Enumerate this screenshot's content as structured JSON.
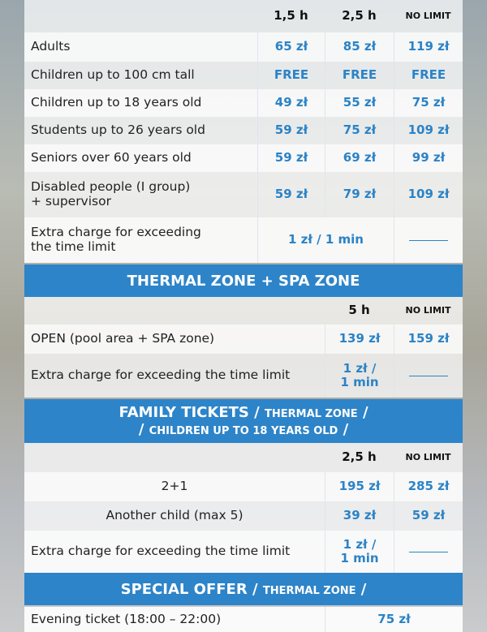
{
  "table1": {
    "headers": [
      "1,5 h",
      "2,5 h",
      "NO LIMIT"
    ],
    "rows": [
      {
        "label": "Adults",
        "v": [
          "65 zł",
          "85 zł",
          "119 zł"
        ]
      },
      {
        "label": "Children up to 100 cm tall",
        "v": [
          "FREE",
          "FREE",
          "FREE"
        ]
      },
      {
        "label": "Children up to 18 years old",
        "v": [
          "49 zł",
          "55 zł",
          "75 zł"
        ]
      },
      {
        "label": "Students up to 26 years old",
        "v": [
          "59 zł",
          "75 zł",
          "109 zł"
        ]
      },
      {
        "label": "Seniors over 60 years old",
        "v": [
          "59 zł",
          "69 zł",
          "99 zł"
        ]
      },
      {
        "label_line1": "Disabled people (I group)",
        "label_line2": "+ supervisor",
        "v": [
          "59 zł",
          "79 zł",
          "109 zł"
        ]
      }
    ],
    "extra": {
      "label_line1": "Extra charge for exceeding",
      "label_line2": "the time limit",
      "value": "1 zł / 1 min"
    }
  },
  "thermal": {
    "title": "THERMAL ZONE + SPA ZONE",
    "headers": [
      "5 h",
      "NO LIMIT"
    ],
    "open": {
      "label": "OPEN (pool area + SPA zone)",
      "v": [
        "139 zł",
        "159 zł"
      ]
    },
    "extra": {
      "label": "Extra charge for exceeding the time limit",
      "line1": "1 zł /",
      "line2": "1 min"
    }
  },
  "family": {
    "title_main": "FAMILY TICKETS",
    "title_sep1": " / ",
    "title_sub1": "THERMAL ZONE",
    "title_sep2": " /",
    "title_line2_pre": "/ ",
    "title_sub2": "CHILDREN UP TO 18 YEARS OLD",
    "title_line2_post": " /",
    "headers": [
      "2,5 h",
      "NO LIMIT"
    ],
    "rows": [
      {
        "label": "2+1",
        "v": [
          "195 zł",
          "285 zł"
        ]
      },
      {
        "label": "Another child (max 5)",
        "v": [
          "39 zł",
          "59 zł"
        ]
      }
    ],
    "extra": {
      "label": "Extra charge for exceeding the time limit",
      "line1": "1 zł /",
      "line2": "1 min"
    }
  },
  "special": {
    "title_main": "SPECIAL OFFER",
    "title_sep1": " / ",
    "title_sub": "THERMAL ZONE",
    "title_sep2": " /",
    "evening": {
      "label": "Evening ticket (18:00 – 22:00)",
      "value": "75 zł"
    }
  }
}
